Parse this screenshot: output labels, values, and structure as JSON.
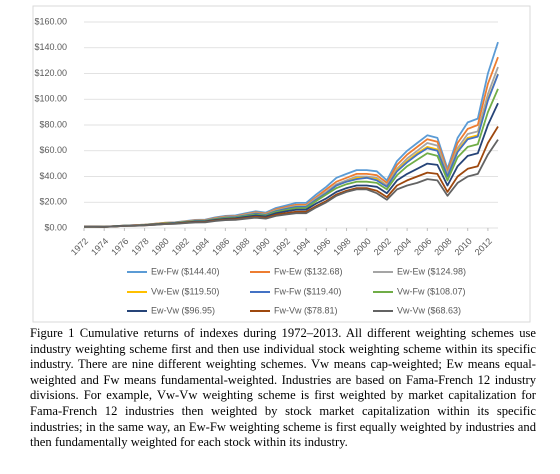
{
  "chart_data": {
    "type": "line",
    "x": [
      1972,
      1973,
      1974,
      1975,
      1976,
      1977,
      1978,
      1979,
      1980,
      1981,
      1982,
      1983,
      1984,
      1985,
      1986,
      1987,
      1988,
      1989,
      1990,
      1991,
      1992,
      1993,
      1994,
      1995,
      1996,
      1997,
      1998,
      1999,
      2000,
      2001,
      2002,
      2003,
      2004,
      2005,
      2006,
      2007,
      2008,
      2009,
      2010,
      2011,
      2012,
      2013
    ],
    "xlim": [
      1972,
      2013
    ],
    "xticks": [
      1972,
      1974,
      1976,
      1978,
      1980,
      1982,
      1984,
      1986,
      1988,
      1990,
      1992,
      1994,
      1996,
      1998,
      2000,
      2002,
      2004,
      2006,
      2008,
      2010,
      2012
    ],
    "ylim": [
      0,
      160
    ],
    "yticks": [
      {
        "value": 0,
        "label": "$0.00"
      },
      {
        "value": 20,
        "label": "$20.00"
      },
      {
        "value": 40,
        "label": "$40.00"
      },
      {
        "value": 60,
        "label": "$60.00"
      },
      {
        "value": 80,
        "label": "$80.00"
      },
      {
        "value": 100,
        "label": "$100.00"
      },
      {
        "value": 120,
        "label": "$120.00"
      },
      {
        "value": 140,
        "label": "$140.00"
      },
      {
        "value": 160,
        "label": "$160.00"
      }
    ],
    "grid": true,
    "legend": "bottom",
    "series": [
      {
        "name": "Ew-Fw ($144.40)",
        "color": "#5b9bd5",
        "values": [
          1,
          1.1,
          0.9,
          1.4,
          1.9,
          2.2,
          2.6,
          3.3,
          4.0,
          4.4,
          5.3,
          6.3,
          6.5,
          8.2,
          9.4,
          9.8,
          11.5,
          13.0,
          12.0,
          15.5,
          17.5,
          19.5,
          19.5,
          26,
          32,
          39,
          42,
          45,
          45,
          44,
          37,
          52,
          60,
          66,
          72,
          70,
          46,
          70,
          82,
          85,
          120,
          144.4
        ]
      },
      {
        "name": "Fw-Ew ($132.68)",
        "color": "#ed7d31",
        "values": [
          1,
          1.1,
          0.9,
          1.4,
          1.9,
          2.2,
          2.6,
          3.3,
          4.0,
          4.3,
          5.1,
          6.0,
          6.2,
          7.8,
          8.9,
          9.2,
          10.8,
          12.2,
          11.2,
          14.5,
          16.3,
          18.0,
          18.0,
          24,
          30,
          36,
          39,
          42,
          42,
          41,
          35,
          49,
          57,
          63,
          69,
          67,
          44,
          66,
          77,
          80,
          112,
          132.68
        ]
      },
      {
        "name": "Ew-Ew ($124.98)",
        "color": "#a5a5a5",
        "values": [
          1,
          1.1,
          0.9,
          1.4,
          1.8,
          2.1,
          2.5,
          3.1,
          3.8,
          4.1,
          4.9,
          5.7,
          5.9,
          7.4,
          8.4,
          8.8,
          10.3,
          11.6,
          10.6,
          13.8,
          15.5,
          17.2,
          17.2,
          23,
          28,
          34,
          37,
          40,
          40,
          39,
          33,
          46,
          54,
          60,
          66,
          64,
          42,
          62,
          73,
          75,
          104,
          124.98
        ]
      },
      {
        "name": "Vw-Ew ($119.50)",
        "color": "#ffc000",
        "values": [
          1,
          1.1,
          0.9,
          1.3,
          1.8,
          2.0,
          2.4,
          3.0,
          3.7,
          4.0,
          4.8,
          5.5,
          5.7,
          7.1,
          8.1,
          8.5,
          9.9,
          11.2,
          10.3,
          13.3,
          15.0,
          16.6,
          16.6,
          22,
          27,
          33,
          36,
          39,
          39,
          38,
          32,
          45,
          52,
          58,
          63,
          61,
          40,
          60,
          70,
          72,
          100,
          119.5
        ]
      },
      {
        "name": "Fw-Fw ($119.40)",
        "color": "#4472c4",
        "values": [
          1,
          1.1,
          0.9,
          1.3,
          1.8,
          2.0,
          2.4,
          3.0,
          3.6,
          4.0,
          4.7,
          5.5,
          5.7,
          7.0,
          8.0,
          8.5,
          9.8,
          11.1,
          10.2,
          13.1,
          14.8,
          16.4,
          16.5,
          22,
          27,
          33,
          36,
          38,
          39,
          37,
          32,
          44,
          51,
          57,
          62,
          60,
          40,
          59,
          69,
          71,
          99,
          119.4
        ]
      },
      {
        "name": "Vw-Fw ($108.07)",
        "color": "#70ad47",
        "values": [
          1,
          1.1,
          0.9,
          1.3,
          1.7,
          1.9,
          2.3,
          2.9,
          3.5,
          3.8,
          4.5,
          5.2,
          5.4,
          6.7,
          7.6,
          8.0,
          9.3,
          10.5,
          9.6,
          12.4,
          14.0,
          15.5,
          15.5,
          21,
          26,
          31,
          34,
          36,
          36,
          35,
          30,
          41,
          48,
          53,
          58,
          56,
          37,
          55,
          63,
          65,
          90,
          108.07
        ]
      },
      {
        "name": "Ew-Vw ($96.95)",
        "color": "#264478",
        "values": [
          1,
          1.0,
          0.9,
          1.3,
          1.7,
          1.9,
          2.2,
          2.8,
          3.3,
          3.6,
          4.3,
          5.0,
          5.1,
          6.3,
          7.1,
          7.5,
          8.6,
          9.7,
          8.9,
          11.5,
          12.9,
          14.2,
          14.2,
          19,
          23,
          28,
          31,
          33,
          33,
          32,
          27,
          37,
          42,
          46,
          50,
          49,
          33,
          48,
          56,
          58,
          80,
          96.95
        ]
      },
      {
        "name": "Fw-Vw ($78.81)",
        "color": "#9e480e",
        "values": [
          1,
          1.0,
          0.9,
          1.2,
          1.6,
          1.8,
          2.1,
          2.6,
          3.1,
          3.4,
          4.0,
          4.6,
          4.7,
          5.8,
          6.5,
          6.8,
          7.8,
          8.7,
          8.0,
          10.3,
          11.5,
          12.6,
          12.6,
          17,
          21,
          26,
          29,
          31,
          31,
          29,
          24,
          33,
          37,
          40,
          43,
          42,
          28,
          40,
          46,
          48,
          66,
          78.81
        ]
      },
      {
        "name": "Vw-Vw ($68.63)",
        "color": "#636363",
        "values": [
          1,
          1.0,
          0.9,
          1.2,
          1.6,
          1.7,
          2.0,
          2.5,
          3.0,
          3.2,
          3.8,
          4.3,
          4.4,
          5.4,
          6.1,
          6.3,
          7.2,
          8.0,
          7.3,
          9.4,
          10.5,
          11.5,
          11.5,
          16,
          20,
          25,
          28,
          30,
          30,
          27,
          22,
          30,
          33,
          35,
          38,
          37,
          25,
          35,
          40,
          42,
          57,
          68.63
        ]
      }
    ]
  },
  "caption": "Figure 1 Cumulative returns of indexes during 1972–2013. All different weighting schemes use industry weighting scheme first and then use individual stock weighting scheme within its specific industry.  There are nine different weighting schemes. Vw means cap-weighted; Ew means equal-weighted and Fw means fundamental-weighted. Industries are based on Fama-French 12 industry divisions. For example, Vw-Vw weighting scheme is first weighted by market capitalization for Fama-French 12 industries then weighted by stock market capitalization within its specific industries; in the same way, an Ew-Fw weighting scheme is first equally weighted by industries and then fundamentally weighted for each stock within its industry."
}
